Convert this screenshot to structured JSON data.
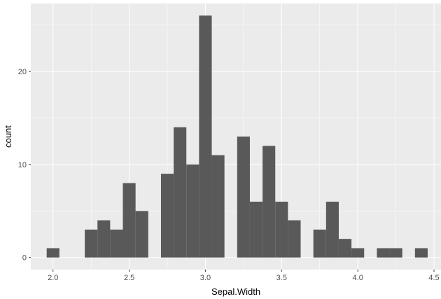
{
  "chart_data": {
    "type": "bar",
    "title": "",
    "xlabel": "Sepal.Width",
    "ylabel": "count",
    "bin_width": 0.0833,
    "bin_centers": [
      2.0,
      2.0833,
      2.1667,
      2.25,
      2.3333,
      2.4167,
      2.5,
      2.5833,
      2.6667,
      2.75,
      2.8333,
      2.9167,
      3.0,
      3.0833,
      3.1667,
      3.25,
      3.3333,
      3.4167,
      3.5,
      3.5833,
      3.6667,
      3.75,
      3.8333,
      3.9167,
      4.0,
      4.0833,
      4.1667,
      4.25,
      4.3333,
      4.4167
    ],
    "values": [
      1,
      0,
      0,
      3,
      4,
      3,
      8,
      5,
      0,
      9,
      14,
      10,
      26,
      11,
      0,
      13,
      6,
      12,
      6,
      4,
      0,
      3,
      6,
      2,
      1,
      0,
      1,
      1,
      0,
      1
    ],
    "xlim": [
      1.8542,
      4.5458
    ],
    "ylim": [
      -1.3,
      27.3
    ],
    "x_ticks": [
      2.0,
      2.5,
      3.0,
      3.5,
      4.0,
      4.5
    ],
    "x_tick_labels": [
      "2.0",
      "2.5",
      "3.0",
      "3.5",
      "4.0",
      "4.5"
    ],
    "y_ticks": [
      0,
      10,
      20
    ],
    "y_tick_labels": [
      "0",
      "10",
      "20"
    ],
    "grid": true,
    "colors": {
      "panel": "#ebebeb",
      "grid_major": "#ffffff",
      "bar_fill": "#595959",
      "tick": "#333333",
      "tick_label": "#4d4d4d"
    }
  }
}
